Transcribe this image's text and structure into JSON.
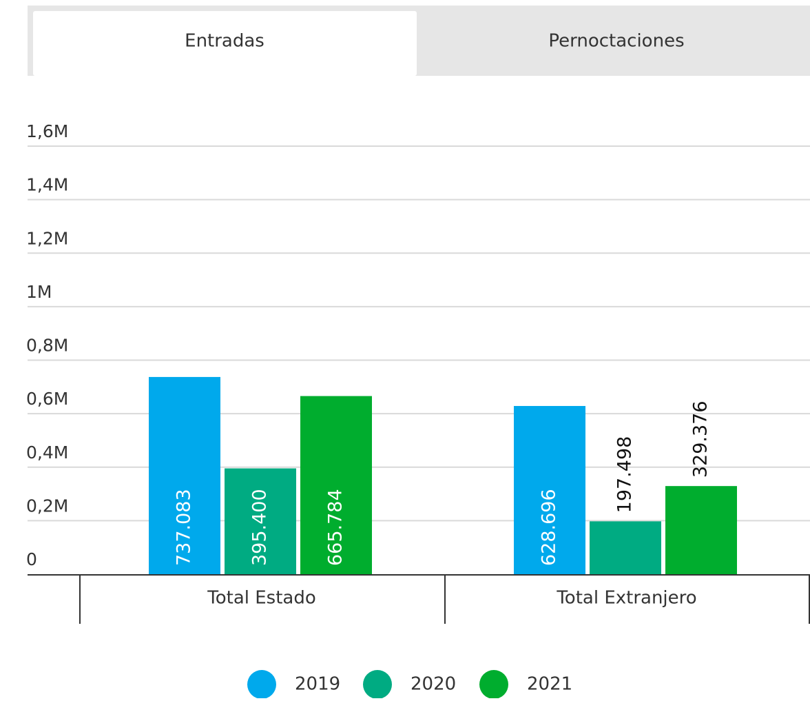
{
  "tabs": [
    "Entradas",
    "Pernoctaciones"
  ],
  "chart_data": {
    "type": "bar",
    "categories": [
      "Total Estado",
      "Total Extranjero"
    ],
    "series": [
      {
        "name": "2019",
        "color": "#00a9ec",
        "values": [
          737083,
          628696
        ],
        "value_labels": [
          "737.083",
          "628.696"
        ]
      },
      {
        "name": "2020",
        "color": "#00ab82",
        "values": [
          395400,
          197498
        ],
        "value_labels": [
          "395.400",
          "197.498"
        ]
      },
      {
        "name": "2021",
        "color": "#00ad2e",
        "values": [
          665784,
          329376
        ],
        "value_labels": [
          "665.784",
          "329.376"
        ]
      }
    ],
    "ylim": [
      0,
      1600000
    ],
    "yticks": [
      0,
      {
        "value": 200000,
        "label": "0,2M"
      },
      {
        "value": 400000,
        "label": "0,4M"
      },
      {
        "value": 600000,
        "label": "0,6M"
      },
      {
        "value": 800000,
        "label": "0,8M"
      },
      {
        "value": 1000000,
        "label": "1M"
      },
      {
        "value": 1200000,
        "label": "1,2M"
      },
      {
        "value": 1400000,
        "label": "1,4M"
      },
      {
        "value": 1600000,
        "label": "1,6M"
      }
    ],
    "grid": true
  }
}
